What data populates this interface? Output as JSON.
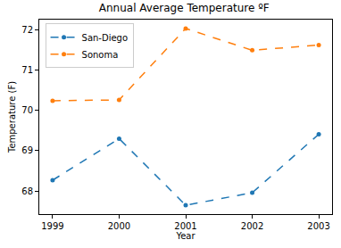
{
  "chart_data": {
    "type": "line",
    "title": "Annual Average Temperature ºF",
    "x_label": "Year",
    "y_label": "Temperature (F)",
    "x": [
      1999,
      2000,
      2001,
      2002,
      2003
    ],
    "series": [
      {
        "name": "San-Diego",
        "color": "#1f77b4",
        "line_style": "dashed",
        "marker": "circle",
        "values": [
          68.27,
          69.3,
          67.65,
          67.96,
          69.41
        ]
      },
      {
        "name": "Sonoma",
        "color": "#ff7f0e",
        "line_style": "dashed",
        "marker": "circle",
        "values": [
          70.24,
          70.26,
          72.03,
          71.49,
          71.62
        ]
      }
    ],
    "xlim": [
      1998.8,
      2003.2
    ],
    "xticks": [
      1999,
      2000,
      2001,
      2002,
      2003
    ],
    "ylim": [
      67.43,
      72.25
    ],
    "yticks": [
      68,
      69,
      70,
      71,
      72
    ],
    "grid": false,
    "legend": "upper left"
  }
}
